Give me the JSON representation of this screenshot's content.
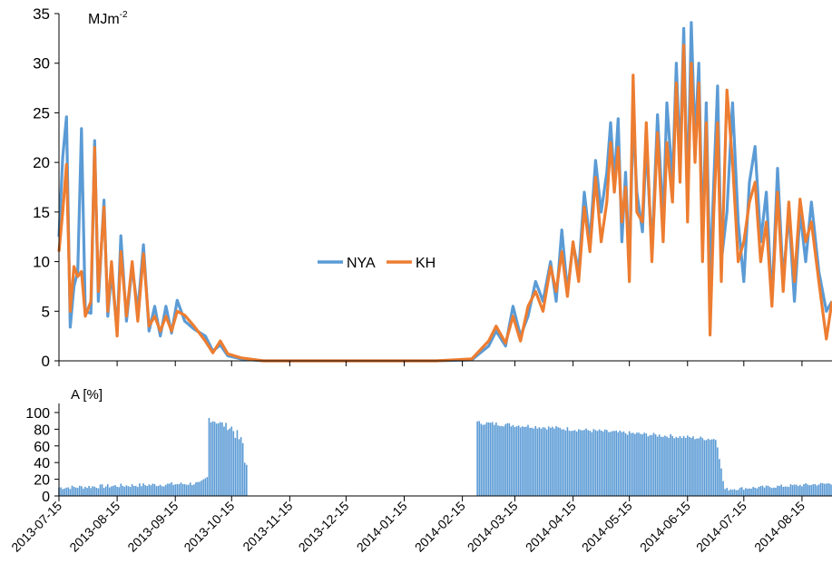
{
  "chart_data": [
    {
      "type": "line",
      "ylabel": "MJm",
      "ylabel_superscript": "-2",
      "ylim": [
        0,
        35
      ],
      "yticks": [
        "0",
        "5",
        "10",
        "15",
        "20",
        "25",
        "30",
        "35"
      ],
      "grid": false,
      "legend": "center",
      "series": [
        {
          "name": "NYA",
          "color": "#5b9bd5",
          "points": [
            [
              "2013-07-15",
              12.5
            ],
            [
              "2013-07-17",
              20.5
            ],
            [
              "2013-07-19",
              24.6
            ],
            [
              "2013-07-21",
              3.4
            ],
            [
              "2013-07-23",
              7.5
            ],
            [
              "2013-07-25",
              9.0
            ],
            [
              "2013-07-27",
              23.4
            ],
            [
              "2013-07-29",
              5.0
            ],
            [
              "2013-08-01",
              4.8
            ],
            [
              "2013-08-03",
              22.2
            ],
            [
              "2013-08-05",
              6.0
            ],
            [
              "2013-08-08",
              16.2
            ],
            [
              "2013-08-10",
              4.5
            ],
            [
              "2013-08-12",
              9.0
            ],
            [
              "2013-08-15",
              3.0
            ],
            [
              "2013-08-17",
              12.6
            ],
            [
              "2013-08-20",
              4.0
            ],
            [
              "2013-08-23",
              9.5
            ],
            [
              "2013-08-26",
              5.0
            ],
            [
              "2013-08-29",
              11.7
            ],
            [
              "2013-09-01",
              3.0
            ],
            [
              "2013-09-04",
              5.5
            ],
            [
              "2013-09-07",
              2.5
            ],
            [
              "2013-09-10",
              5.5
            ],
            [
              "2013-09-13",
              2.8
            ],
            [
              "2013-09-16",
              6.1
            ],
            [
              "2013-09-20",
              4.0
            ],
            [
              "2013-09-25",
              3.2
            ],
            [
              "2013-10-01",
              2.5
            ],
            [
              "2013-10-05",
              1.0
            ],
            [
              "2013-10-09",
              1.6
            ],
            [
              "2013-10-13",
              0.5
            ],
            [
              "2013-10-20",
              0.2
            ],
            [
              "2013-11-01",
              0.0
            ],
            [
              "2013-12-01",
              0.0
            ],
            [
              "2014-01-01",
              0.0
            ],
            [
              "2014-02-01",
              0.0
            ],
            [
              "2014-02-20",
              0.1
            ],
            [
              "2014-03-01",
              1.5
            ],
            [
              "2014-03-05",
              3.0
            ],
            [
              "2014-03-10",
              1.5
            ],
            [
              "2014-03-14",
              5.5
            ],
            [
              "2014-03-18",
              2.5
            ],
            [
              "2014-03-22",
              4.5
            ],
            [
              "2014-03-26",
              8.0
            ],
            [
              "2014-03-30",
              6.0
            ],
            [
              "2014-04-03",
              10.0
            ],
            [
              "2014-04-06",
              6.0
            ],
            [
              "2014-04-09",
              13.2
            ],
            [
              "2014-04-12",
              7.0
            ],
            [
              "2014-04-15",
              11.8
            ],
            [
              "2014-04-18",
              9.0
            ],
            [
              "2014-04-21",
              17.0
            ],
            [
              "2014-04-24",
              12.0
            ],
            [
              "2014-04-27",
              20.2
            ],
            [
              "2014-04-30",
              15.0
            ],
            [
              "2014-05-03",
              19.0
            ],
            [
              "2014-05-05",
              24.0
            ],
            [
              "2014-05-07",
              18.0
            ],
            [
              "2014-05-09",
              24.4
            ],
            [
              "2014-05-11",
              12.0
            ],
            [
              "2014-05-13",
              19.0
            ],
            [
              "2014-05-15",
              9.5
            ],
            [
              "2014-05-17",
              24.5
            ],
            [
              "2014-05-19",
              17.0
            ],
            [
              "2014-05-22",
              13.0
            ],
            [
              "2014-05-24",
              22.0
            ],
            [
              "2014-05-27",
              11.0
            ],
            [
              "2014-05-30",
              24.8
            ],
            [
              "2014-06-02",
              14.0
            ],
            [
              "2014-06-04",
              26.0
            ],
            [
              "2014-06-07",
              18.0
            ],
            [
              "2014-06-09",
              30.0
            ],
            [
              "2014-06-11",
              20.0
            ],
            [
              "2014-06-13",
              33.5
            ],
            [
              "2014-06-15",
              16.0
            ],
            [
              "2014-06-17",
              34.1
            ],
            [
              "2014-06-19",
              22.0
            ],
            [
              "2014-06-21",
              30.0
            ],
            [
              "2014-06-23",
              12.0
            ],
            [
              "2014-06-25",
              26.0
            ],
            [
              "2014-06-27",
              8.0
            ],
            [
              "2014-06-29",
              18.0
            ],
            [
              "2014-07-01",
              27.7
            ],
            [
              "2014-07-03",
              10.0
            ],
            [
              "2014-07-06",
              15.0
            ],
            [
              "2014-07-09",
              26.0
            ],
            [
              "2014-07-12",
              14.0
            ],
            [
              "2014-07-15",
              8.0
            ],
            [
              "2014-07-18",
              18.0
            ],
            [
              "2014-07-21",
              21.6
            ],
            [
              "2014-07-24",
              12.0
            ],
            [
              "2014-07-27",
              17.0
            ],
            [
              "2014-07-30",
              6.0
            ],
            [
              "2014-08-02",
              19.4
            ],
            [
              "2014-08-05",
              8.0
            ],
            [
              "2014-08-08",
              15.0
            ],
            [
              "2014-08-11",
              6.0
            ],
            [
              "2014-08-14",
              15.0
            ],
            [
              "2014-08-17",
              10.0
            ],
            [
              "2014-08-20",
              16.0
            ],
            [
              "2014-08-24",
              9.0
            ],
            [
              "2014-08-28",
              5.0
            ],
            [
              "2014-08-31",
              6.0
            ]
          ]
        },
        {
          "name": "KH",
          "color": "#ed7d31",
          "points": [
            [
              "2013-07-15",
              11.0
            ],
            [
              "2013-07-17",
              15.0
            ],
            [
              "2013-07-19",
              19.8
            ],
            [
              "2013-07-21",
              5.0
            ],
            [
              "2013-07-23",
              9.5
            ],
            [
              "2013-07-25",
              8.5
            ],
            [
              "2013-07-27",
              9.0
            ],
            [
              "2013-07-29",
              4.5
            ],
            [
              "2013-08-01",
              6.0
            ],
            [
              "2013-08-03",
              21.5
            ],
            [
              "2013-08-05",
              7.0
            ],
            [
              "2013-08-08",
              15.5
            ],
            [
              "2013-08-10",
              5.0
            ],
            [
              "2013-08-12",
              10.0
            ],
            [
              "2013-08-15",
              2.5
            ],
            [
              "2013-08-17",
              11.0
            ],
            [
              "2013-08-20",
              4.5
            ],
            [
              "2013-08-23",
              10.0
            ],
            [
              "2013-08-26",
              4.0
            ],
            [
              "2013-08-29",
              10.8
            ],
            [
              "2013-09-01",
              3.5
            ],
            [
              "2013-09-04",
              4.5
            ],
            [
              "2013-09-07",
              3.0
            ],
            [
              "2013-09-10",
              4.5
            ],
            [
              "2013-09-13",
              3.0
            ],
            [
              "2013-09-16",
              5.0
            ],
            [
              "2013-09-20",
              4.6
            ],
            [
              "2013-09-25",
              3.5
            ],
            [
              "2013-10-01",
              2.0
            ],
            [
              "2013-10-05",
              0.8
            ],
            [
              "2013-10-09",
              2.0
            ],
            [
              "2013-10-13",
              0.7
            ],
            [
              "2013-10-20",
              0.3
            ],
            [
              "2013-11-01",
              0.0
            ],
            [
              "2013-12-01",
              0.0
            ],
            [
              "2014-01-01",
              0.0
            ],
            [
              "2014-02-01",
              0.0
            ],
            [
              "2014-02-20",
              0.2
            ],
            [
              "2014-03-01",
              2.0
            ],
            [
              "2014-03-05",
              3.5
            ],
            [
              "2014-03-10",
              1.8
            ],
            [
              "2014-03-14",
              4.5
            ],
            [
              "2014-03-18",
              2.0
            ],
            [
              "2014-03-22",
              5.5
            ],
            [
              "2014-03-26",
              7.0
            ],
            [
              "2014-03-30",
              5.0
            ],
            [
              "2014-04-03",
              9.5
            ],
            [
              "2014-04-06",
              7.0
            ],
            [
              "2014-04-09",
              11.0
            ],
            [
              "2014-04-12",
              6.5
            ],
            [
              "2014-04-15",
              12.0
            ],
            [
              "2014-04-18",
              8.0
            ],
            [
              "2014-04-21",
              15.5
            ],
            [
              "2014-04-24",
              11.0
            ],
            [
              "2014-04-27",
              18.5
            ],
            [
              "2014-04-30",
              12.0
            ],
            [
              "2014-05-03",
              16.0
            ],
            [
              "2014-05-05",
              22.0
            ],
            [
              "2014-05-07",
              17.0
            ],
            [
              "2014-05-09",
              21.5
            ],
            [
              "2014-05-11",
              14.0
            ],
            [
              "2014-05-13",
              17.5
            ],
            [
              "2014-05-15",
              8.0
            ],
            [
              "2014-05-17",
              28.8
            ],
            [
              "2014-05-19",
              15.0
            ],
            [
              "2014-05-22",
              14.0
            ],
            [
              "2014-05-24",
              24.0
            ],
            [
              "2014-05-27",
              10.0
            ],
            [
              "2014-05-30",
              23.0
            ],
            [
              "2014-06-02",
              12.0
            ],
            [
              "2014-06-04",
              22.0
            ],
            [
              "2014-06-07",
              16.0
            ],
            [
              "2014-06-09",
              28.0
            ],
            [
              "2014-06-11",
              18.0
            ],
            [
              "2014-06-13",
              31.8
            ],
            [
              "2014-06-15",
              14.0
            ],
            [
              "2014-06-17",
              30.0
            ],
            [
              "2014-06-19",
              20.0
            ],
            [
              "2014-06-21",
              28.0
            ],
            [
              "2014-06-23",
              10.0
            ],
            [
              "2014-06-25",
              24.0
            ],
            [
              "2014-06-27",
              2.6
            ],
            [
              "2014-06-29",
              15.0
            ],
            [
              "2014-07-01",
              24.0
            ],
            [
              "2014-07-03",
              8.0
            ],
            [
              "2014-07-06",
              27.3
            ],
            [
              "2014-07-09",
              20.0
            ],
            [
              "2014-07-12",
              10.0
            ],
            [
              "2014-07-15",
              12.0
            ],
            [
              "2014-07-18",
              16.0
            ],
            [
              "2014-07-21",
              18.0
            ],
            [
              "2014-07-24",
              10.0
            ],
            [
              "2014-07-27",
              14.0
            ],
            [
              "2014-07-30",
              5.5
            ],
            [
              "2014-08-02",
              17.0
            ],
            [
              "2014-08-05",
              7.0
            ],
            [
              "2014-08-08",
              16.0
            ],
            [
              "2014-08-11",
              8.0
            ],
            [
              "2014-08-14",
              16.3
            ],
            [
              "2014-08-17",
              12.0
            ],
            [
              "2014-08-20",
              14.0
            ],
            [
              "2014-08-24",
              8.0
            ],
            [
              "2014-08-28",
              2.2
            ],
            [
              "2014-08-31",
              6.0
            ]
          ]
        }
      ]
    },
    {
      "type": "bar",
      "ylabel": "A [%]",
      "ylim": [
        0,
        100
      ],
      "yticks": [
        "0",
        "20",
        "40",
        "60",
        "80",
        "100"
      ],
      "grid": false,
      "color": "#5b9bd5",
      "xticks": [
        "2013-07-15",
        "2013-08-15",
        "2013-09-15",
        "2013-10-15",
        "2013-11-15",
        "2013-12-15",
        "2014-01-15",
        "2014-02-15",
        "2014-03-15",
        "2014-04-15",
        "2014-05-15",
        "2014-06-15",
        "2014-07-15",
        "2014-08-15"
      ],
      "segments": [
        {
          "start": "2013-07-15",
          "end": "2013-09-27",
          "from": 10,
          "to": 15,
          "jitter": 5
        },
        {
          "start": "2013-09-28",
          "end": "2013-10-02",
          "from": 15,
          "to": 22,
          "jitter": 4
        },
        {
          "start": "2013-10-03",
          "end": "2013-10-14",
          "from": 93,
          "to": 82,
          "jitter": 8
        },
        {
          "start": "2013-10-15",
          "end": "2013-10-21",
          "from": 82,
          "to": 62,
          "jitter": 14
        },
        {
          "start": "2013-10-22",
          "end": "2013-10-23",
          "from": 40,
          "to": 38,
          "jitter": 2
        },
        {
          "start": "2014-02-23",
          "end": "2014-06-30",
          "from": 88,
          "to": 68,
          "jitter": 5
        },
        {
          "start": "2014-07-01",
          "end": "2014-07-04",
          "from": 60,
          "to": 18,
          "jitter": 4
        },
        {
          "start": "2014-07-05",
          "end": "2014-08-31",
          "from": 8,
          "to": 15,
          "jitter": 4
        }
      ]
    }
  ]
}
